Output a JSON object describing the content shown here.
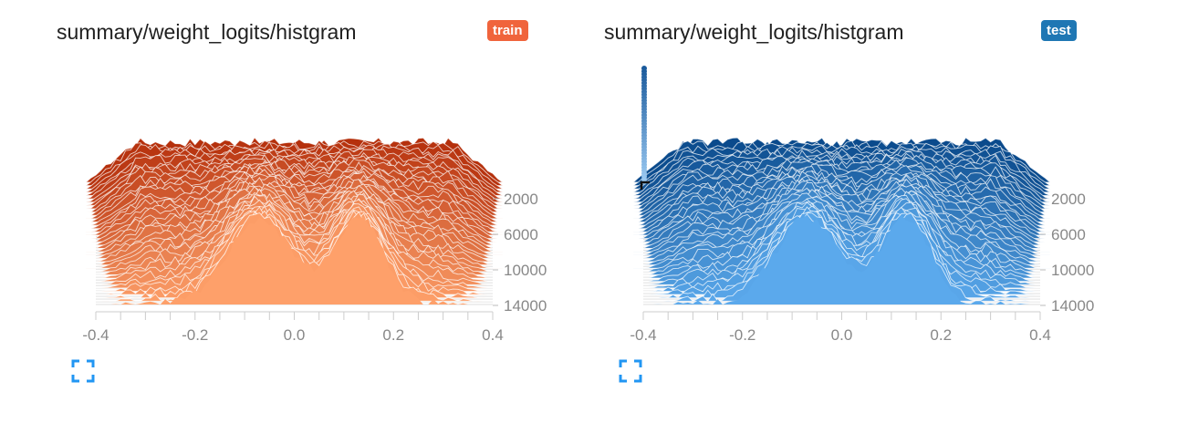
{
  "cards": [
    {
      "title": "summary/weight_logits/histgram",
      "run": "train",
      "badge_color": "#f0643c",
      "icon": "fullscreen-expand-icon"
    },
    {
      "title": "summary/weight_logits/histgram",
      "run": "test",
      "badge_color": "#1f77b4",
      "icon": "fullscreen-expand-icon"
    }
  ],
  "chart_data": [
    {
      "type": "area",
      "mode": "offset histogram",
      "run": "train",
      "colors": {
        "back": "#b5300c",
        "front": "#fea06a"
      },
      "x_ticks": [
        "-0.4",
        "-0.2",
        "0.0",
        "0.2",
        "0.4"
      ],
      "x_range": [
        -0.4,
        0.4
      ],
      "y_ticks": [
        "2000",
        "6000",
        "10000",
        "14000"
      ],
      "step_range": [
        0,
        15000
      ]
    },
    {
      "type": "area",
      "mode": "offset histogram",
      "run": "test",
      "colors": {
        "back": "#0a4a8c",
        "front": "#5ba9ec"
      },
      "x_ticks": [
        "-0.4",
        "-0.2",
        "0.0",
        "0.2",
        "0.4"
      ],
      "x_range": [
        -0.4,
        0.4
      ],
      "y_ticks": [
        "2000",
        "6000",
        "10000",
        "14000"
      ],
      "step_range": [
        0,
        15000
      ]
    }
  ]
}
